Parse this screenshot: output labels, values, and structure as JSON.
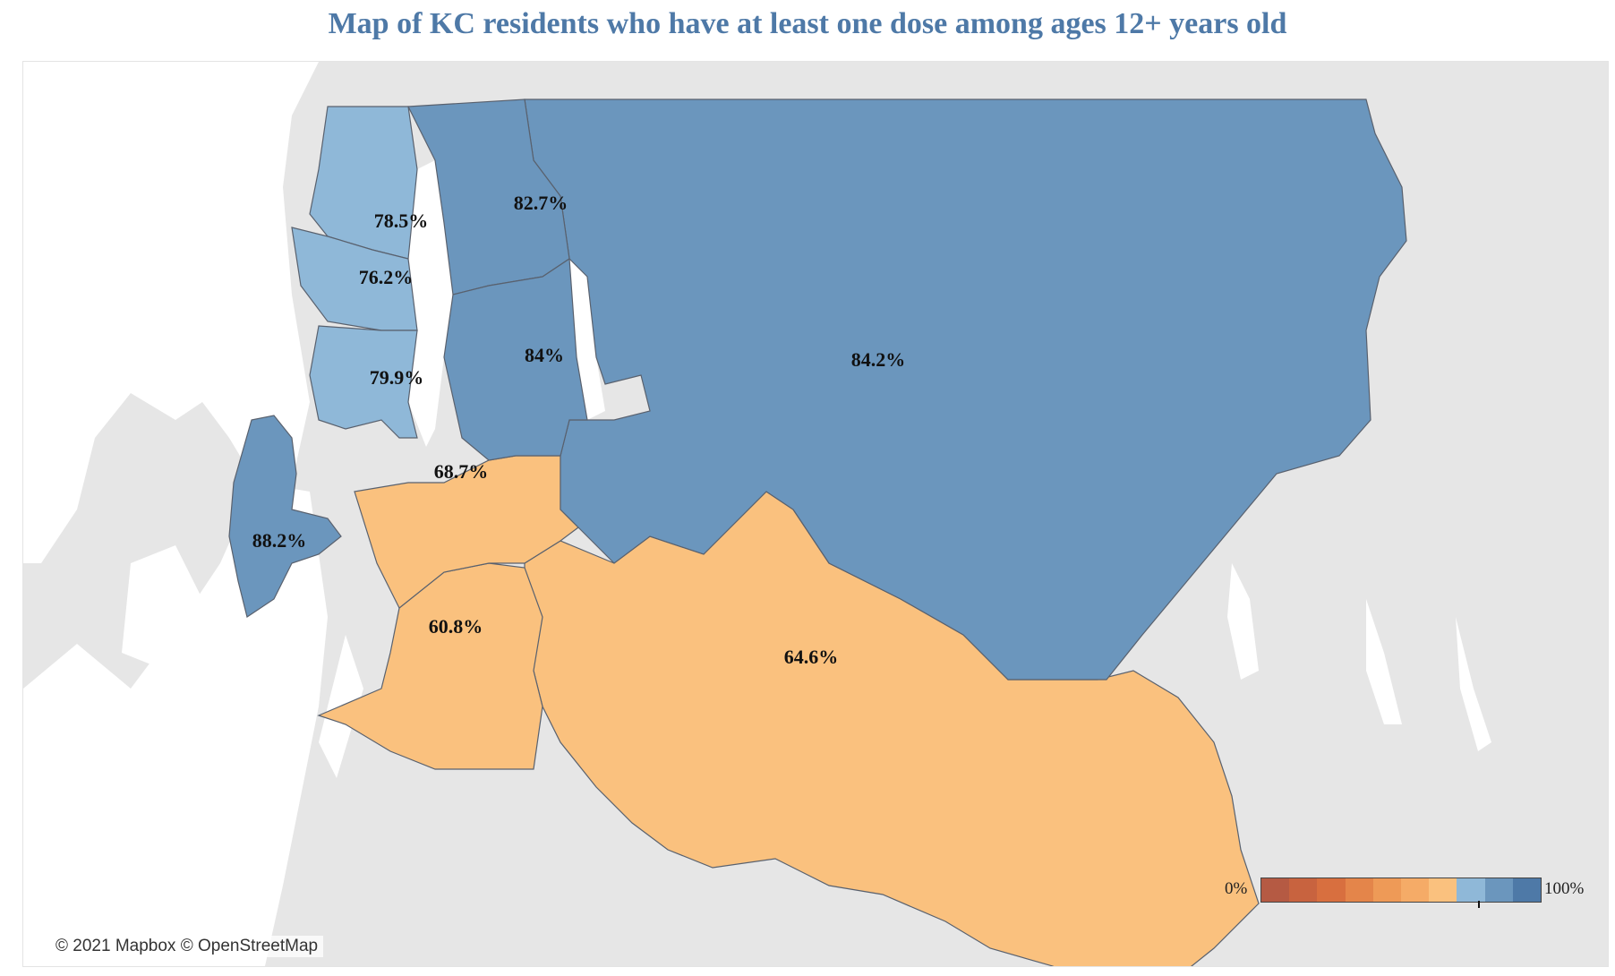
{
  "title": "Map of KC residents who have at least one dose among ages 12+ years old",
  "attribution": "© 2021 Mapbox © OpenStreetMap",
  "legend": {
    "min_label": "0%",
    "max_label": "100%",
    "colors": [
      "#b55a43",
      "#c8633f",
      "#d86f3f",
      "#e4854a",
      "#ee9a57",
      "#f5ab67",
      "#fac17e",
      "#8fb8d8",
      "#6b96bd",
      "#4e79a7"
    ],
    "marker_value_percent": 78
  },
  "colors": {
    "title": "#4e79a7",
    "high_blue": "#6b96bd",
    "mid_blue": "#8fb8d8",
    "low_orange": "#fac17e",
    "water": "#ffffff",
    "land": "#e4e4e4"
  },
  "chart_data": {
    "type": "choropleth",
    "title": "Map of KC residents who have at least one dose among ages 12+ years old",
    "scale": {
      "min": 0,
      "max": 100,
      "unit": "%"
    },
    "regions": [
      {
        "id": "northeast",
        "value": 84.2,
        "label": "84.2%"
      },
      {
        "id": "north-shore",
        "value": 82.7,
        "label": "82.7%"
      },
      {
        "id": "eastside",
        "value": 84.0,
        "label": "84%"
      },
      {
        "id": "north-seattle",
        "value": 78.5,
        "label": "78.5%"
      },
      {
        "id": "central-seattle",
        "value": 76.2,
        "label": "76.2%"
      },
      {
        "id": "south-seattle",
        "value": 79.9,
        "label": "79.9%"
      },
      {
        "id": "vashon",
        "value": 88.2,
        "label": "88.2%"
      },
      {
        "id": "southwest",
        "value": 68.7,
        "label": "68.7%"
      },
      {
        "id": "south-central",
        "value": 60.8,
        "label": "60.8%"
      },
      {
        "id": "southeast",
        "value": 64.6,
        "label": "64.6%"
      }
    ]
  }
}
